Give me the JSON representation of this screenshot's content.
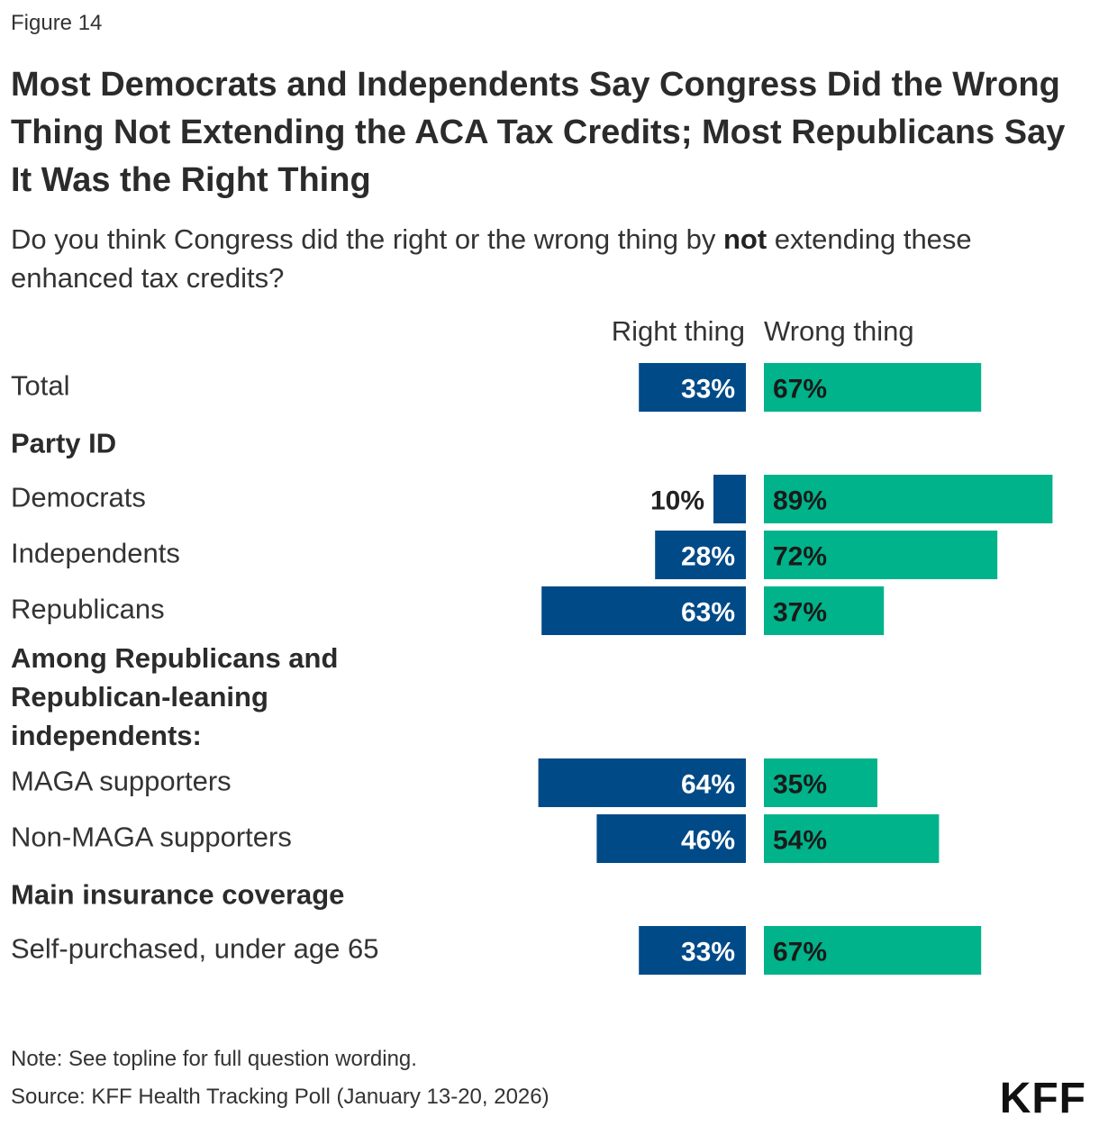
{
  "figure_label": "Figure 14",
  "title": "Most Democrats and Independents Say Congress Did the Wrong Thing Not Extending the ACA Tax Credits; Most Republicans Say It Was the Right Thing",
  "subtitle_before": "Do you think Congress did the right or the wrong thing by ",
  "subtitle_bold": "not",
  "subtitle_after": " extending these enhanced tax credits?",
  "note": "Note: See topline for full question wording.",
  "source": "Source: KFF Health Tracking Poll (January 13-20, 2026)",
  "logo": "KFF",
  "colors": {
    "right_thing": "#004a87",
    "wrong_thing": "#00b38a"
  },
  "chart_data": {
    "type": "bar",
    "orientation": "horizontal-diverging",
    "series": [
      {
        "name": "Right thing",
        "color": "#004a87"
      },
      {
        "name": "Wrong thing",
        "color": "#00b38a"
      }
    ],
    "rows": [
      {
        "kind": "bar",
        "label": "Total",
        "right": 33,
        "wrong": 67
      },
      {
        "kind": "heading",
        "label": "Party ID"
      },
      {
        "kind": "bar",
        "label": "Democrats",
        "right": 10,
        "wrong": 89
      },
      {
        "kind": "bar",
        "label": "Independents",
        "right": 28,
        "wrong": 72
      },
      {
        "kind": "bar",
        "label": "Republicans",
        "right": 63,
        "wrong": 37
      },
      {
        "kind": "heading",
        "lines": [
          "Among Republicans and",
          "Republican-leaning",
          "independents:"
        ]
      },
      {
        "kind": "bar",
        "label": "MAGA supporters",
        "right": 64,
        "wrong": 35
      },
      {
        "kind": "bar",
        "label": "Non-MAGA supporters",
        "right": 46,
        "wrong": 54
      },
      {
        "kind": "heading",
        "label": "Main insurance coverage"
      },
      {
        "kind": "bar",
        "label": "Self-purchased, under age 65",
        "right": 33,
        "wrong": 67
      }
    ],
    "value_format": "percent",
    "xlim": [
      0,
      100
    ]
  }
}
